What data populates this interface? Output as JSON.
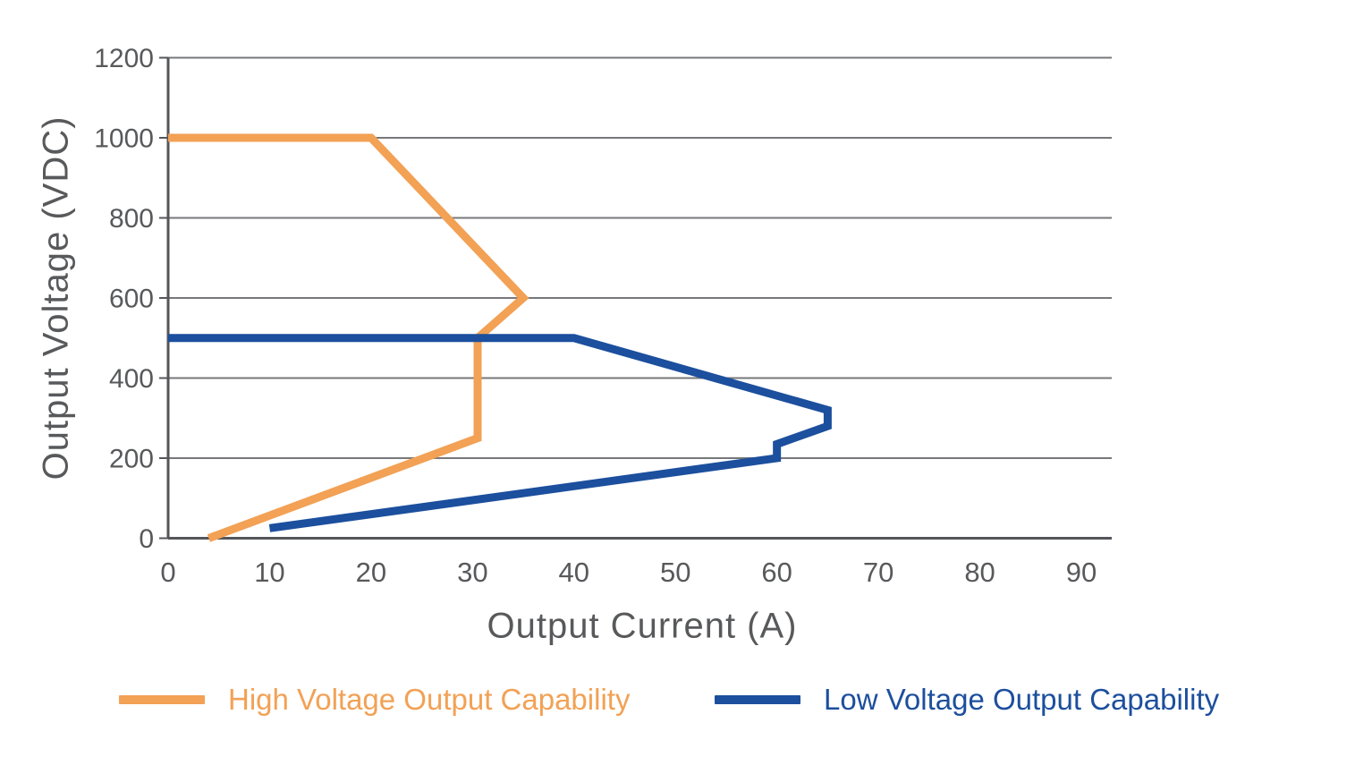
{
  "chart_data": {
    "type": "line",
    "title": "",
    "xlabel": "Output Current (A)",
    "ylabel": "Output Voltage (VDC)",
    "xlim": [
      0,
      90
    ],
    "ylim": [
      0,
      1200
    ],
    "x_ticks": [
      0,
      10,
      20,
      30,
      40,
      50,
      60,
      70,
      80,
      90
    ],
    "y_ticks": [
      0,
      200,
      400,
      600,
      800,
      1000,
      1200
    ],
    "grid": "horizontal",
    "legend_position": "bottom",
    "colors": {
      "text": "#58595B",
      "grid": "#77787B",
      "axis": "#55565A"
    },
    "series": [
      {
        "name": "High Voltage Output Capability",
        "color": "#F2A155",
        "points": [
          [
            0,
            1000
          ],
          [
            20,
            1000
          ],
          [
            35,
            600
          ],
          [
            30.5,
            500
          ],
          [
            30.5,
            250
          ],
          [
            4,
            0
          ]
        ]
      },
      {
        "name": "Low Voltage Output Capability",
        "color": "#1C4F9D",
        "points": [
          [
            0,
            500
          ],
          [
            40,
            500
          ],
          [
            65,
            320
          ],
          [
            65,
            280
          ],
          [
            60,
            235
          ],
          [
            60,
            200
          ],
          [
            10,
            25
          ]
        ]
      }
    ]
  }
}
